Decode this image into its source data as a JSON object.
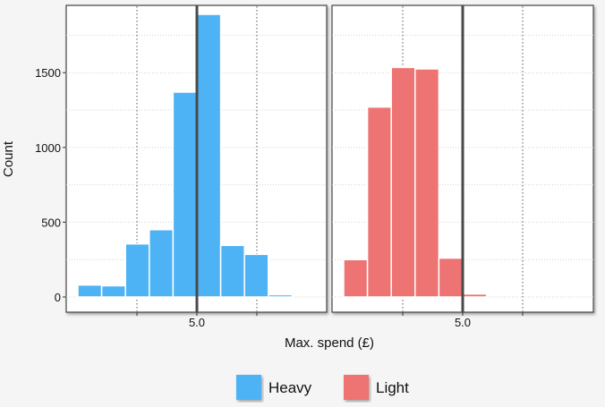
{
  "chart_data": {
    "type": "bar",
    "subtype": "faceted-histogram",
    "xlabel": "Max. spend (£)",
    "ylabel": "Count",
    "ylim": [
      0,
      1950
    ],
    "y_ticks": [
      0,
      500,
      1000,
      1500
    ],
    "y_tick_labels": [
      "0",
      "500",
      "1000",
      "1500"
    ],
    "x_tick_label": "5.0",
    "vertical_reference_line": 5.0,
    "grid": true,
    "legend_position": "bottom",
    "series": [
      {
        "name": "Heavy",
        "color": "#4db3f5",
        "bins": [
          {
            "value": 80
          },
          {
            "value": 75
          },
          {
            "value": 355
          },
          {
            "value": 450
          },
          {
            "value": 1370
          },
          {
            "value": 1890
          },
          {
            "value": 345
          },
          {
            "value": 285
          },
          {
            "value": 15
          }
        ]
      },
      {
        "name": "Light",
        "color": "#ee7373",
        "bins": [
          {
            "value": 250
          },
          {
            "value": 1270
          },
          {
            "value": 1535
          },
          {
            "value": 1525
          },
          {
            "value": 260
          },
          {
            "value": 20
          }
        ]
      }
    ]
  }
}
